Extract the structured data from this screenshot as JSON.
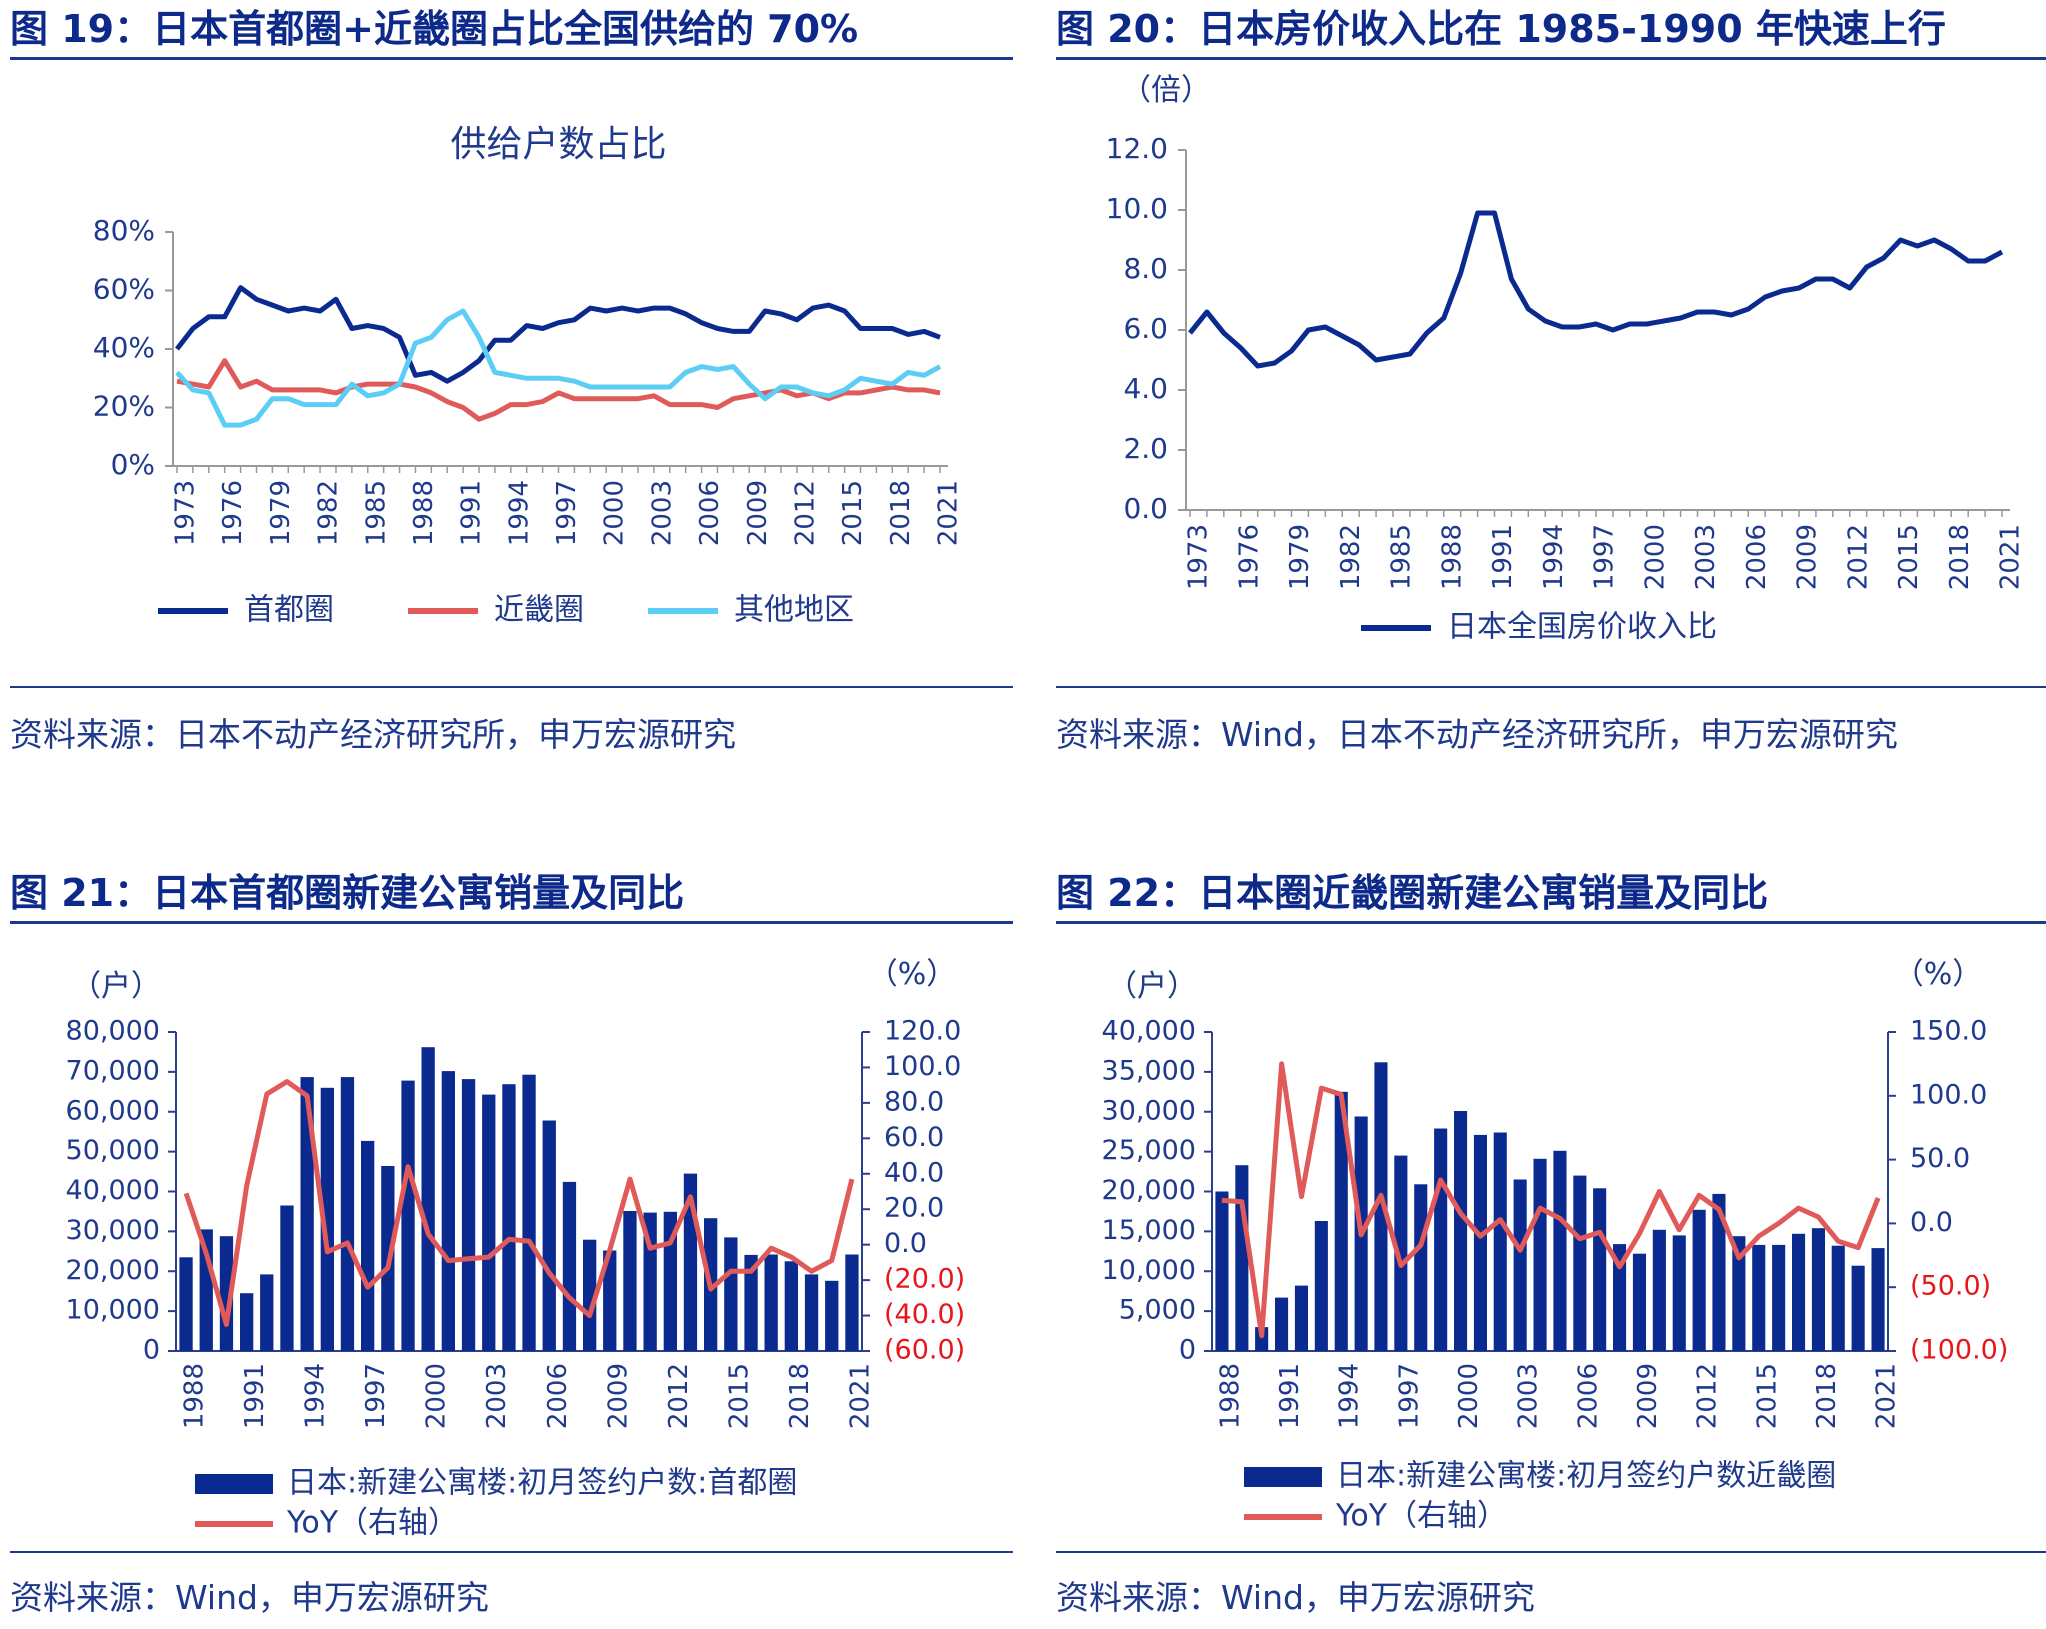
{
  "colors": {
    "navy": "#0b2a8f",
    "red": "#e05a5a",
    "cyan": "#5ccdf5",
    "heading": "#0d2a8a",
    "axis": "#1f3a8c",
    "negative": "#e8161b"
  },
  "panels": [
    {
      "heading": "图 19：日本首都圈+近畿圈占比全国供给的 70%",
      "source": "资料来源：日本不动产经济研究所，申万宏源研究",
      "chart_data": {
        "type": "line",
        "title": "供给户数占比",
        "x": [
          1973,
          1974,
          1975,
          1976,
          1977,
          1978,
          1979,
          1980,
          1981,
          1982,
          1983,
          1984,
          1985,
          1986,
          1987,
          1988,
          1989,
          1990,
          1991,
          1992,
          1993,
          1994,
          1995,
          1996,
          1997,
          1998,
          1999,
          2000,
          2001,
          2002,
          2003,
          2004,
          2005,
          2006,
          2007,
          2008,
          2009,
          2010,
          2011,
          2012,
          2013,
          2014,
          2015,
          2016,
          2017,
          2018,
          2019,
          2020,
          2021
        ],
        "xticks": [
          "1973",
          "1976",
          "1979",
          "1982",
          "1985",
          "1988",
          "1991",
          "1994",
          "1997",
          "2000",
          "2003",
          "2006",
          "2009",
          "2012",
          "2015",
          "2018",
          "2021"
        ],
        "ylim": [
          0,
          80
        ],
        "yticks": [
          "0%",
          "20%",
          "40%",
          "60%",
          "80%"
        ],
        "series": [
          {
            "name": "首都圈",
            "color": "#0b2a8f",
            "values": [
              40,
              47,
              51,
              51,
              61,
              57,
              55,
              53,
              54,
              53,
              57,
              47,
              48,
              47,
              44,
              31,
              32,
              29,
              32,
              36,
              43,
              43,
              48,
              47,
              49,
              50,
              54,
              53,
              54,
              53,
              54,
              54,
              52,
              49,
              47,
              46,
              46,
              53,
              52,
              50,
              54,
              55,
              53,
              47,
              47,
              47,
              45,
              46,
              44
            ]
          },
          {
            "name": "近畿圈",
            "color": "#e05a5a",
            "values": [
              29,
              28,
              27,
              36,
              27,
              29,
              26,
              26,
              26,
              26,
              25,
              27,
              28,
              28,
              28,
              27,
              25,
              22,
              20,
              16,
              18,
              21,
              21,
              22,
              25,
              23,
              23,
              23,
              23,
              23,
              24,
              21,
              21,
              21,
              20,
              23,
              24,
              25,
              26,
              24,
              25,
              23,
              25,
              25,
              26,
              27,
              26,
              26,
              25
            ]
          },
          {
            "name": "其他地区",
            "color": "#5ccdf5",
            "values": [
              32,
              26,
              25,
              14,
              14,
              16,
              23,
              23,
              21,
              21,
              21,
              28,
              24,
              25,
              28,
              42,
              44,
              50,
              53,
              44,
              32,
              31,
              30,
              30,
              30,
              29,
              27,
              27,
              27,
              27,
              27,
              27,
              32,
              34,
              33,
              34,
              28,
              23,
              27,
              27,
              25,
              24,
              26,
              30,
              29,
              28,
              32,
              31,
              34
            ]
          }
        ],
        "legend_position": "bottom"
      }
    },
    {
      "heading": "图 20：日本房价收入比在 1985-1990 年快速上行",
      "source": "资料来源：Wind，日本不动产经济研究所，申万宏源研究",
      "chart_data": {
        "type": "line",
        "ylabel": "（倍）",
        "x": [
          1973,
          1974,
          1975,
          1976,
          1977,
          1978,
          1979,
          1980,
          1981,
          1982,
          1983,
          1984,
          1985,
          1986,
          1987,
          1988,
          1989,
          1990,
          1991,
          1992,
          1993,
          1994,
          1995,
          1996,
          1997,
          1998,
          1999,
          2000,
          2001,
          2002,
          2003,
          2004,
          2005,
          2006,
          2007,
          2008,
          2009,
          2010,
          2011,
          2012,
          2013,
          2014,
          2015,
          2016,
          2017,
          2018,
          2019,
          2020,
          2021
        ],
        "xticks": [
          "1973",
          "1976",
          "1979",
          "1982",
          "1985",
          "1988",
          "1991",
          "1994",
          "1997",
          "2000",
          "2003",
          "2006",
          "2009",
          "2012",
          "2015",
          "2018",
          "2021"
        ],
        "ylim": [
          0,
          12
        ],
        "yticks": [
          "0.0",
          "2.0",
          "4.0",
          "6.0",
          "8.0",
          "10.0",
          "12.0"
        ],
        "series": [
          {
            "name": "日本全国房价收入比",
            "color": "#0b2a8f",
            "values": [
              5.9,
              6.6,
              5.9,
              5.4,
              4.8,
              4.9,
              5.3,
              6.0,
              6.1,
              5.8,
              5.5,
              5.0,
              5.1,
              5.2,
              5.9,
              6.4,
              7.9,
              9.9,
              9.9,
              7.7,
              6.7,
              6.3,
              6.1,
              6.1,
              6.2,
              6.0,
              6.2,
              6.2,
              6.3,
              6.4,
              6.6,
              6.6,
              6.5,
              6.7,
              7.1,
              7.3,
              7.4,
              7.7,
              7.7,
              7.4,
              8.1,
              8.4,
              9.0,
              8.8,
              9.0,
              8.7,
              8.3,
              8.3,
              8.6
            ]
          }
        ],
        "legend_position": "bottom"
      }
    },
    {
      "heading": "图 21：日本首都圈新建公寓销量及同比",
      "source": "资料来源：Wind，申万宏源研究",
      "chart_data": {
        "type": "bar",
        "ylabel_left": "（户）",
        "ylabel_right": "（%）",
        "x": [
          1988,
          1989,
          1990,
          1991,
          1992,
          1993,
          1994,
          1995,
          1996,
          1997,
          1998,
          1999,
          2000,
          2001,
          2002,
          2003,
          2004,
          2005,
          2006,
          2007,
          2008,
          2009,
          2010,
          2011,
          2012,
          2013,
          2014,
          2015,
          2016,
          2017,
          2018,
          2019,
          2020,
          2021
        ],
        "xticks": [
          "1988",
          "1991",
          "1994",
          "1997",
          "2000",
          "2003",
          "2006",
          "2009",
          "2012",
          "2015",
          "2018",
          "2021"
        ],
        "ylim_left": [
          0,
          80000
        ],
        "yticks_left": [
          "0",
          "10,000",
          "20,000",
          "30,000",
          "40,000",
          "50,000",
          "60,000",
          "70,000",
          "80,000"
        ],
        "ylim_right": [
          -60,
          120
        ],
        "yticks_right": [
          "(60.0)",
          "(40.0)",
          "(20.0)",
          "0.0",
          "20.0",
          "40.0",
          "60.0",
          "80.0",
          "100.0",
          "120.0"
        ],
        "series": [
          {
            "name": "日本:新建公寓楼:初月签约户数:首都圈",
            "kind": "bar",
            "color": "#0b2a8f",
            "values": [
              23500,
              30500,
              28800,
              14500,
              19200,
              36500,
              68700,
              66000,
              68700,
              52700,
              46400,
              67800,
              76200,
              70200,
              68200,
              64300,
              66900,
              69300,
              57800,
              42400,
              27900,
              25200,
              35100,
              34700,
              34900,
              44500,
              33300,
              28500,
              24100,
              24200,
              22500,
              19200,
              17600,
              24200
            ]
          },
          {
            "name": "YoY（右轴）",
            "kind": "line",
            "axis": "right",
            "color": "#e05a5a",
            "values": [
              29,
              -5,
              -45,
              33,
              85,
              92,
              84,
              -4,
              1,
              -24,
              -13,
              44,
              6,
              -9,
              -8,
              -7,
              3,
              2,
              -16,
              -30,
              -40,
              -3,
              37,
              -2,
              1,
              27,
              -25,
              -15,
              -15,
              -2,
              -7,
              -15,
              -9,
              37
            ]
          }
        ],
        "legend_position": "bottom"
      }
    },
    {
      "heading": "图 22：日本圈近畿圈新建公寓销量及同比",
      "source": "资料来源：Wind，申万宏源研究",
      "chart_data": {
        "type": "bar",
        "ylabel_left": "（户）",
        "ylabel_right": "（%）",
        "x": [
          1988,
          1989,
          1990,
          1991,
          1992,
          1993,
          1994,
          1995,
          1996,
          1997,
          1998,
          1999,
          2000,
          2001,
          2002,
          2003,
          2004,
          2005,
          2006,
          2007,
          2008,
          2009,
          2010,
          2011,
          2012,
          2013,
          2014,
          2015,
          2016,
          2017,
          2018,
          2019,
          2020,
          2021
        ],
        "xticks": [
          "1988",
          "1991",
          "1994",
          "1997",
          "2000",
          "2003",
          "2006",
          "2009",
          "2012",
          "2015",
          "2018",
          "2021"
        ],
        "ylim_left": [
          0,
          40000
        ],
        "yticks_left": [
          "0",
          "5,000",
          "10,000",
          "15,000",
          "20,000",
          "25,000",
          "30,000",
          "35,000",
          "40,000"
        ],
        "ylim_right": [
          -100,
          150
        ],
        "yticks_right": [
          "(100.0)",
          "(50.0)",
          "0.0",
          "50.0",
          "100.0",
          "150.0"
        ],
        "series": [
          {
            "name": "日本:新建公寓楼:初月签约户数近畿圈",
            "kind": "bar",
            "color": "#0b2a8f",
            "values": [
              20000,
              23300,
              3000,
              6700,
              8200,
              16300,
              32500,
              29400,
              36200,
              24500,
              20900,
              27900,
              30100,
              27100,
              27400,
              21500,
              24100,
              25100,
              22000,
              20400,
              13400,
              12200,
              15200,
              14500,
              17700,
              19700,
              14400,
              13300,
              13300,
              14700,
              15400,
              13200,
              10700,
              12900
            ]
          },
          {
            "name": "YoY（右轴）",
            "kind": "line",
            "axis": "right",
            "color": "#e05a5a",
            "values": [
              18,
              17,
              -88,
              125,
              21,
              106,
              101,
              -9,
              22,
              -33,
              -17,
              34,
              8,
              -10,
              3,
              -21,
              12,
              4,
              -12,
              -7,
              -34,
              -8,
              25,
              -5,
              22,
              11,
              -27,
              -10,
              0,
              12,
              5,
              -14,
              -19,
              20
            ]
          }
        ],
        "legend_position": "bottom"
      }
    }
  ]
}
